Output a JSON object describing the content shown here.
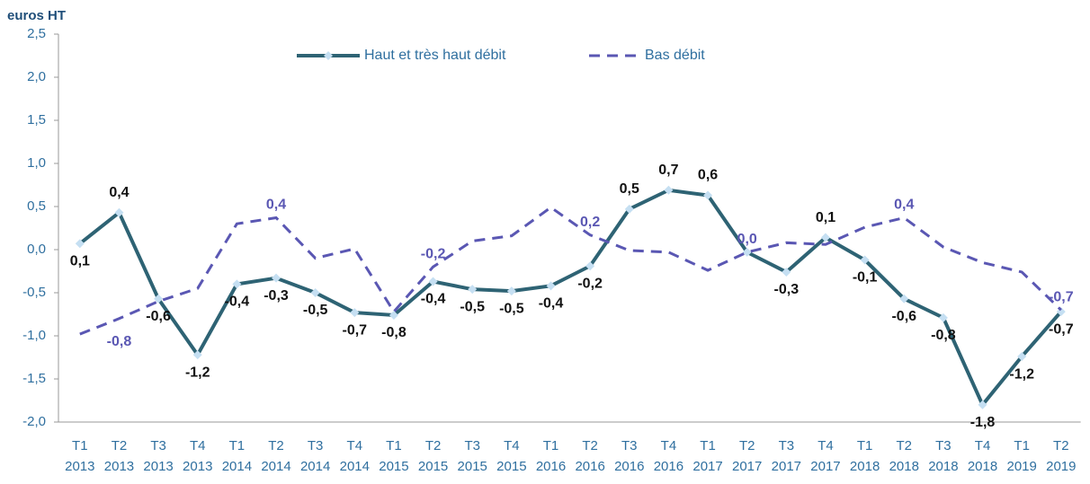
{
  "chart_data": {
    "type": "line",
    "y_label": "euros HT",
    "categories": [
      [
        "T1",
        "2013"
      ],
      [
        "T2",
        "2013"
      ],
      [
        "T3",
        "2013"
      ],
      [
        "T4",
        "2013"
      ],
      [
        "T1",
        "2014"
      ],
      [
        "T2",
        "2014"
      ],
      [
        "T3",
        "2014"
      ],
      [
        "T4",
        "2014"
      ],
      [
        "T1",
        "2015"
      ],
      [
        "T2",
        "2015"
      ],
      [
        "T3",
        "2015"
      ],
      [
        "T4",
        "2015"
      ],
      [
        "T1",
        "2016"
      ],
      [
        "T2",
        "2016"
      ],
      [
        "T3",
        "2016"
      ],
      [
        "T4",
        "2016"
      ],
      [
        "T1",
        "2017"
      ],
      [
        "T2",
        "2017"
      ],
      [
        "T3",
        "2017"
      ],
      [
        "T4",
        "2017"
      ],
      [
        "T1",
        "2018"
      ],
      [
        "T2",
        "2018"
      ],
      [
        "T3",
        "2018"
      ],
      [
        "T4",
        "2018"
      ],
      [
        "T1",
        "2019"
      ],
      [
        "T2",
        "2019"
      ]
    ],
    "series": [
      {
        "name": "Haut et très haut débit",
        "color": "#2e6374",
        "marker_color": "#c5dff2",
        "dashed": false,
        "values": [
          0.07,
          0.43,
          -0.57,
          -1.22,
          -0.4,
          -0.33,
          -0.5,
          -0.73,
          -0.76,
          -0.37,
          -0.46,
          -0.48,
          -0.42,
          -0.19,
          0.47,
          0.69,
          0.63,
          -0.03,
          -0.26,
          0.14,
          -0.12,
          -0.57,
          -0.79,
          -1.8,
          -1.24,
          -0.72
        ],
        "value_labels": [
          "0,1",
          "0,4",
          "-0,6",
          "-1,2",
          "-0,4",
          "-0,3",
          "-0,5",
          "-0,7",
          "-0,8",
          "-0,4",
          "-0,5",
          "-0,5",
          "-0,4",
          "-0,2",
          "0,5",
          "0,7",
          "0,6",
          null,
          "-0,3",
          "0,1",
          "-0,1",
          "-0,6",
          "-0,8",
          "-1,8",
          "-1,2",
          "-0,7"
        ]
      },
      {
        "name": "Bas débit",
        "color": "#5a57b3",
        "dashed": true,
        "values": [
          -0.98,
          -0.8,
          -0.6,
          -0.45,
          0.3,
          0.37,
          -0.1,
          0.01,
          -0.72,
          -0.2,
          0.1,
          0.16,
          0.49,
          0.17,
          -0.01,
          -0.03,
          -0.24,
          -0.03,
          0.08,
          0.06,
          0.26,
          0.37,
          0.03,
          -0.15,
          -0.26,
          -0.7
        ],
        "value_labels": [
          null,
          "-0,8",
          null,
          null,
          null,
          "0,4",
          null,
          null,
          null,
          "-0,2",
          null,
          null,
          null,
          "0,2",
          null,
          null,
          null,
          "0,0",
          null,
          null,
          null,
          "0,4",
          null,
          null,
          null,
          "-0,7"
        ]
      }
    ],
    "ylim": [
      -2.0,
      2.5
    ],
    "yticks": [
      {
        "value": -2.0,
        "label": "-2,0"
      },
      {
        "value": -1.5,
        "label": "-1,5"
      },
      {
        "value": -1.0,
        "label": "-1,0"
      },
      {
        "value": -0.5,
        "label": "-0,5"
      },
      {
        "value": 0,
        "label": "0,0"
      },
      {
        "value": 0.5,
        "label": "0,5"
      },
      {
        "value": 1.0,
        "label": "1,0"
      },
      {
        "value": 1.5,
        "label": "1,5"
      },
      {
        "value": 2.0,
        "label": "2,0"
      },
      {
        "value": 2.5,
        "label": "2,5"
      }
    ],
    "grid": false,
    "legend_position": "top"
  }
}
